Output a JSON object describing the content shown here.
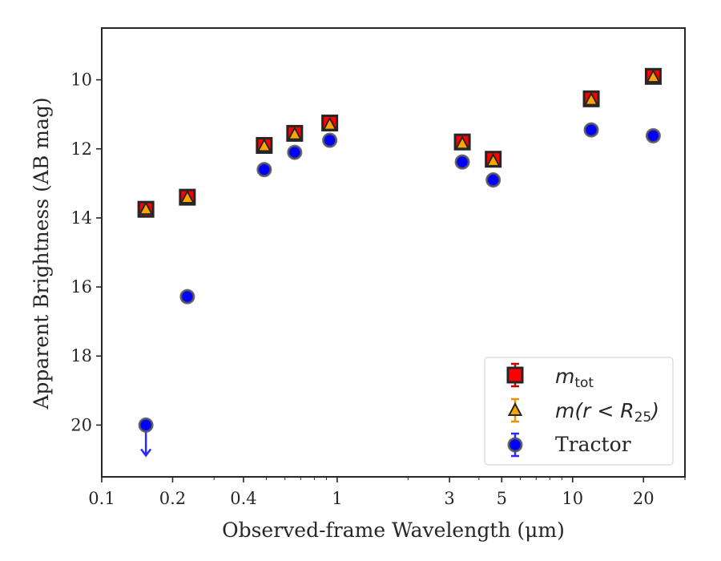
{
  "chart_data": {
    "type": "scatter",
    "xlabel": "Observed-frame Wavelength (μm)",
    "ylabel": "Apparent Brightness (AB mag)",
    "x_scale": "log",
    "xlim": [
      0.1,
      30
    ],
    "ylim": [
      21.5,
      8.5
    ],
    "y_inverted": true,
    "grid": false,
    "legend_position": "lower-right",
    "x_tick_labels": [
      "0.1",
      "0.2",
      "0.4",
      "1",
      "3",
      "5",
      "10",
      "20"
    ],
    "y_tick_labels": [
      "10",
      "12",
      "14",
      "16",
      "18",
      "20"
    ],
    "x_ticks": [
      0.1,
      0.2,
      0.4,
      1,
      3,
      5,
      10,
      20
    ],
    "y_ticks": [
      10,
      12,
      14,
      16,
      18,
      20
    ],
    "series": [
      {
        "legend": "m_tot",
        "legend_main": "m",
        "legend_sub": "tot",
        "marker": "square",
        "color": "#ff0000",
        "edge_color": "#262626",
        "errorbar_color": "#cc0000",
        "x": [
          0.154,
          0.231,
          0.49,
          0.66,
          0.93,
          3.4,
          4.6,
          12.0,
          22.0
        ],
        "y": [
          13.75,
          13.4,
          11.9,
          11.55,
          11.25,
          11.8,
          12.3,
          10.55,
          9.9
        ]
      },
      {
        "legend": "m(r < R25)",
        "legend_main": "m(r < R",
        "legend_sub": "25",
        "legend_close": ")",
        "marker": "triangle",
        "color": "#ffa500",
        "edge_color": "#262626",
        "errorbar_color": "#e69500",
        "x": [
          0.154,
          0.231,
          0.49,
          0.66,
          0.93,
          3.4,
          4.6,
          12.0,
          22.0
        ],
        "y": [
          13.75,
          13.42,
          11.92,
          11.58,
          11.3,
          11.85,
          12.35,
          10.58,
          9.92
        ]
      },
      {
        "legend": "Tractor",
        "marker": "circle",
        "color": "#0000ff",
        "edge_color": "#555555",
        "errorbar_color": "#2a2aff",
        "x": [
          0.154,
          0.231,
          0.49,
          0.66,
          0.93,
          3.4,
          4.6,
          12.0,
          22.0
        ],
        "y": [
          20.0,
          16.28,
          12.6,
          12.1,
          11.75,
          12.38,
          12.9,
          11.45,
          11.62
        ],
        "upper_limit_index": 0
      }
    ]
  }
}
